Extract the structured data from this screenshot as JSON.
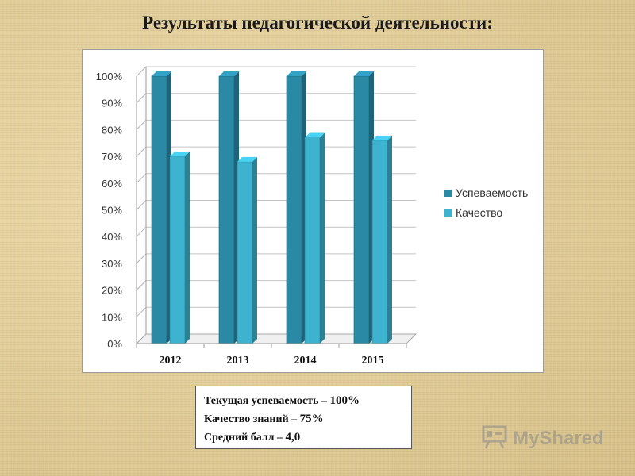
{
  "title": "Результаты педагогической деятельности:",
  "chart_data": {
    "type": "bar",
    "categories": [
      "2012",
      "2013",
      "2014",
      "2015"
    ],
    "series": [
      {
        "name": "Успеваемость",
        "values": [
          100,
          100,
          100,
          100
        ],
        "color": "#2a8aa6"
      },
      {
        "name": "Качество",
        "values": [
          70,
          68,
          77,
          76
        ],
        "color": "#3db3cf"
      }
    ],
    "ylim": [
      0,
      100
    ],
    "yticks": [
      "0%",
      "10%",
      "20%",
      "30%",
      "40%",
      "50%",
      "60%",
      "70%",
      "80%",
      "90%",
      "100%"
    ],
    "legend_position": "right",
    "grid": true
  },
  "summary": {
    "line1_label": "Текущая успеваемость",
    "line1_sep": " – ",
    "line1_value": "100%",
    "line2_label": "Качество знаний",
    "line2_sep": " – ",
    "line2_value": "75%",
    "line3_label": "Средний балл",
    "line3_sep": " – ",
    "line3_value": "4,0"
  },
  "watermark": {
    "text": "MyShared",
    "icon": "presentation-icon"
  }
}
